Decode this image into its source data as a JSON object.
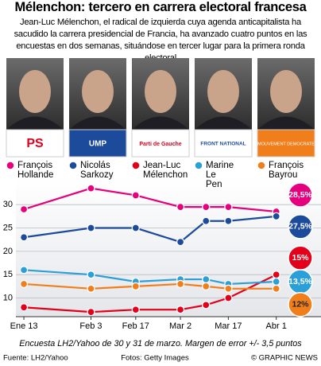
{
  "header": {
    "title": "Mélenchon: tercero en carrera electoral francesa",
    "subtitle": "Jean-Luc Mélenchon, el radical de izquierda cuya agenda anticapitalista ha sacudido la carrera presidencial de Francia, ha avanzado cuatro puntos en las encuestas en dos semanas, situándose en tercer lugar para la primera ronda electoral"
  },
  "logos": [
    "PS",
    "UMP",
    "Parti de Gauche",
    "FRONT NATIONAL",
    "MOUVEMENT DEMOCRATE"
  ],
  "chart_data": {
    "type": "line",
    "x": [
      0,
      21,
      35,
      49,
      57,
      64,
      79
    ],
    "xlim": [
      -2.5,
      93
    ],
    "xticks": [
      {
        "value": 0,
        "label": "Ene 13"
      },
      {
        "value": 21,
        "label": "Feb 3"
      },
      {
        "value": 35,
        "label": "Feb 17"
      },
      {
        "value": 49,
        "label": "Mar 2"
      },
      {
        "value": 64,
        "label": "Mar 17"
      },
      {
        "value": 79,
        "label": "Abr 1"
      }
    ],
    "ylim": [
      6,
      36
    ],
    "yticks": [
      10,
      15,
      20,
      25,
      30
    ],
    "grid": true,
    "series": [
      {
        "name": "François Hollande",
        "color": "#e6007e",
        "values": [
          29,
          33.5,
          32,
          29.5,
          29.5,
          29.5,
          28.5
        ],
        "value_labels": [
          null,
          null,
          null,
          null,
          null,
          null,
          "28,5%"
        ]
      },
      {
        "name": "Nicolás Sarkozy",
        "color": "#1d4b9b",
        "values": [
          23,
          25,
          25,
          22,
          26.5,
          26.5,
          27.5
        ],
        "value_labels": [
          null,
          null,
          null,
          null,
          null,
          null,
          "27,5%"
        ]
      },
      {
        "name": "Jean-Luc Mélenchon",
        "color": "#e3001b",
        "values": [
          8,
          7,
          7.5,
          7.5,
          8.5,
          10,
          15
        ],
        "value_labels": [
          null,
          null,
          null,
          null,
          null,
          null,
          "15%"
        ]
      },
      {
        "name": "Marine Le Pen",
        "color": "#2a9fd8",
        "values": [
          16,
          15,
          13.5,
          14,
          14,
          13,
          13.5
        ],
        "value_labels": [
          null,
          null,
          null,
          null,
          null,
          null,
          "13,5%"
        ]
      },
      {
        "name": "François Bayrou",
        "color": "#f07f1b",
        "values": [
          13,
          12,
          12.5,
          13,
          12.5,
          12,
          12
        ],
        "value_labels": [
          null,
          null,
          null,
          null,
          null,
          null,
          "12%"
        ]
      }
    ]
  },
  "footer": {
    "note": "Encuesta LH2/Yahoo de 30 y 31 de marzo. Margen de error +/- 3,5 puntos",
    "source": "Fuente: LH2/Yahoo",
    "photos": "Fotos: Getty Images",
    "credit": "© GRAPHIC NEWS"
  }
}
